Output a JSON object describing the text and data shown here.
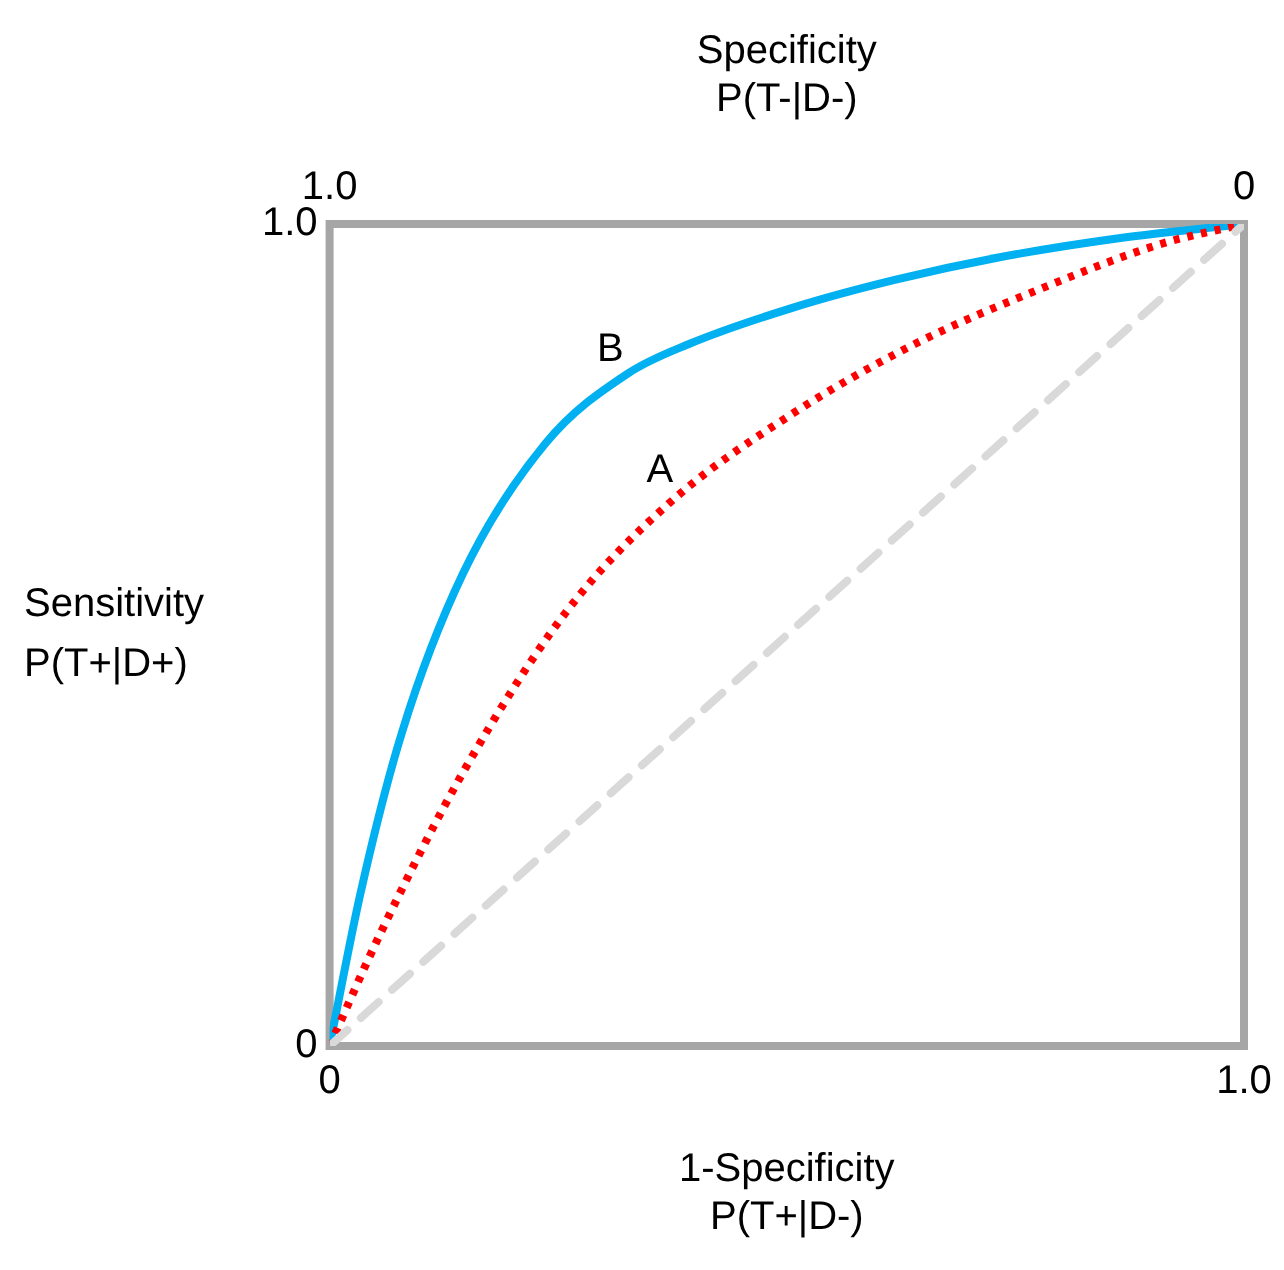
{
  "chart_data": {
    "type": "line",
    "xlabel": "1-Specificity\nP(T+|D-)",
    "x2label": "Specificity\nP(T-|D-)",
    "ylabel": "Sensitivity\nP(T+|D+)",
    "xlim": [
      0,
      1
    ],
    "xticks": [
      0,
      {
        "value": 1,
        "label": "1.0"
      }
    ],
    "x2lim": [
      1,
      0
    ],
    "x2ticks": [
      {
        "value": 1,
        "label": "1.0"
      },
      0
    ],
    "ylim": [
      0,
      1
    ],
    "yticks": [
      0,
      {
        "value": 1,
        "label": "1.0"
      }
    ],
    "legend": false,
    "marker": "none",
    "series": [
      {
        "color": "#d9d9d9",
        "line_style": "dashed",
        "x": [
          0,
          1
        ],
        "values": [
          0,
          1
        ]
      },
      {
        "color": "#ff0000",
        "line_style": "dotted",
        "x": [
          0,
          0.056,
          0.146,
          0.258,
          0.371,
          0.506,
          0.64,
          0.775,
          0.91,
          1
        ],
        "values": [
          0,
          0.138,
          0.333,
          0.527,
          0.66,
          0.769,
          0.854,
          0.92,
          0.976,
          1
        ]
      },
      {
        "color": "#00b0f0",
        "line_style": "solid",
        "x": [
          0,
          0.034,
          0.079,
          0.146,
          0.236,
          0.326,
          0.393,
          0.506,
          0.618,
          0.73,
          0.865,
          1
        ],
        "values": [
          0,
          0.187,
          0.381,
          0.575,
          0.733,
          0.818,
          0.854,
          0.898,
          0.932,
          0.959,
          0.983,
          1
        ]
      }
    ],
    "annotations": [
      {
        "text": "A",
        "x": 0.38,
        "y": 0.67
      },
      {
        "text": "B",
        "x": 0.326,
        "y": 0.818
      }
    ]
  }
}
